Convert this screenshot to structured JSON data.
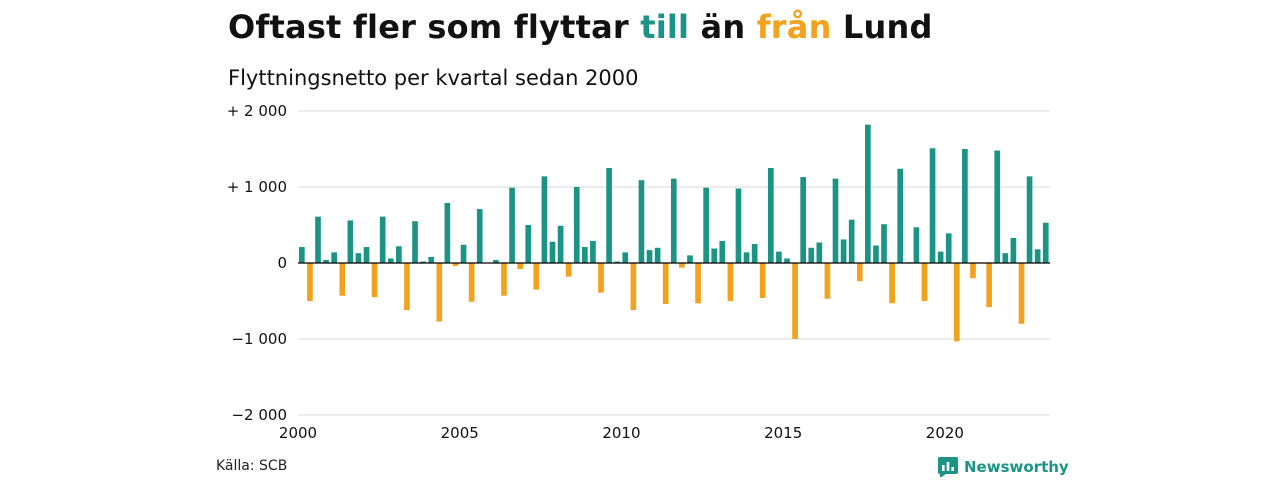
{
  "title": {
    "part1": "Oftast fler som flyttar ",
    "highlight_pos": "till",
    "part2": " än ",
    "highlight_neg": "från",
    "part3": " Lund"
  },
  "subtitle": "Flyttningsnetto per kvartal sedan 2000",
  "source": "Källa: SCB",
  "brand": {
    "name": "Newsworthy",
    "icon": "newsworthy-logo-icon"
  },
  "colors": {
    "positive": "#1b9486",
    "negative": "#f2a21d",
    "grid": "#d9d9d9",
    "axis": "#000000"
  },
  "chart_data": {
    "type": "bar",
    "title": "Oftast fler som flyttar till än från Lund",
    "subtitle": "Flyttningsnetto per kvartal sedan 2000",
    "xlabel": "",
    "ylabel": "",
    "ylim": [
      -2000,
      2000
    ],
    "y_ticks": [
      {
        "value": 2000,
        "label": "+ 2 000"
      },
      {
        "value": 1000,
        "label": "+ 1 000"
      },
      {
        "value": 0,
        "label": "0"
      },
      {
        "value": -1000,
        "label": "−1 000"
      },
      {
        "value": -2000,
        "label": "−2 000"
      }
    ],
    "x_ticks": [
      {
        "year": 2000,
        "label": "2000"
      },
      {
        "year": 2005,
        "label": "2005"
      },
      {
        "year": 2010,
        "label": "2010"
      },
      {
        "year": 2015,
        "label": "2015"
      },
      {
        "year": 2020,
        "label": "2020"
      }
    ],
    "grid": true,
    "legend": "none",
    "start_year": 2000,
    "periods_per_year": 4,
    "values": [
      210,
      -500,
      610,
      40,
      140,
      -430,
      560,
      130,
      210,
      -450,
      610,
      60,
      220,
      -620,
      550,
      20,
      80,
      -770,
      790,
      -40,
      240,
      -510,
      710,
      0,
      40,
      -430,
      990,
      -80,
      500,
      -350,
      1140,
      280,
      490,
      -180,
      1000,
      210,
      290,
      -390,
      1250,
      20,
      140,
      -620,
      1090,
      170,
      200,
      -540,
      1110,
      -60,
      100,
      -530,
      990,
      190,
      290,
      -500,
      980,
      140,
      250,
      -460,
      1250,
      150,
      60,
      -1000,
      1130,
      200,
      270,
      -470,
      1110,
      310,
      570,
      -240,
      1820,
      230,
      510,
      -530,
      1240,
      10,
      470,
      -500,
      1510,
      150,
      390,
      -1030,
      1500,
      -200,
      0,
      -580,
      1480,
      130,
      330,
      -800,
      1140,
      180,
      530
    ]
  }
}
